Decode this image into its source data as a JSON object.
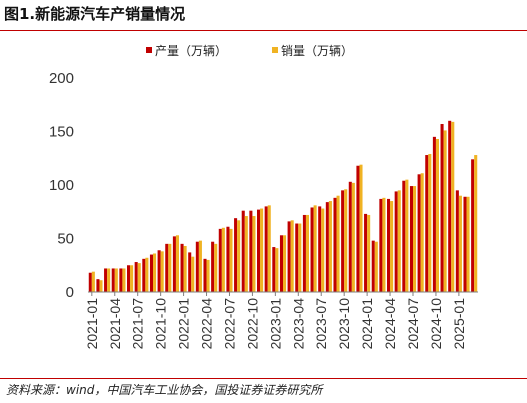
{
  "title": "图1.新能源汽车产销量情况",
  "source": "资料来源：wind，中国汽车工业协会，国投证券证券研究所",
  "colors": {
    "production": "#c00000",
    "sales": "#f0b323",
    "accent": "#c00000"
  },
  "chart_data": {
    "type": "bar",
    "title": "图1.新能源汽车产销量情况",
    "xlabel": "",
    "ylabel": "",
    "ylim": [
      0,
      200
    ],
    "yticks": [
      "0",
      "50",
      "100",
      "150",
      "200"
    ],
    "legend_position": "top",
    "grid": false,
    "xtick_labels": [
      "2021-01",
      "2021-04",
      "2021-07",
      "2021-10",
      "2022-01",
      "2022-04",
      "2022-07",
      "2022-10",
      "2023-01",
      "2023-04",
      "2023-07",
      "2023-10",
      "2024-01",
      "2024-04",
      "2024-07",
      "2024-10",
      "2025-01"
    ],
    "categories": [
      "2021-01",
      "2021-02",
      "2021-03",
      "2021-04",
      "2021-05",
      "2021-06",
      "2021-07",
      "2021-08",
      "2021-09",
      "2021-10",
      "2021-11",
      "2021-12",
      "2022-01",
      "2022-02",
      "2022-03",
      "2022-04",
      "2022-05",
      "2022-06",
      "2022-07",
      "2022-08",
      "2022-09",
      "2022-10",
      "2022-11",
      "2022-12",
      "2023-01",
      "2023-02",
      "2023-03",
      "2023-04",
      "2023-05",
      "2023-06",
      "2023-07",
      "2023-08",
      "2023-09",
      "2023-10",
      "2023-11",
      "2023-12",
      "2024-01",
      "2024-02",
      "2024-03",
      "2024-04",
      "2024-05",
      "2024-06",
      "2024-07",
      "2024-08",
      "2024-09",
      "2024-10",
      "2024-11",
      "2024-12",
      "2025-01",
      "2025-02",
      "2025-03"
    ],
    "series": [
      {
        "name": "产量（万辆）",
        "values": [
          18,
          12,
          22,
          22,
          22,
          25,
          28,
          31,
          35,
          39,
          45,
          52,
          45,
          37,
          47,
          31,
          47,
          59,
          61,
          69,
          76,
          76,
          77,
          80,
          42,
          53,
          66,
          64,
          72,
          79,
          80,
          84,
          88,
          95,
          103,
          118,
          73,
          48,
          87,
          87,
          94,
          104,
          99,
          110,
          128,
          145,
          157,
          160,
          95,
          89,
          124
        ]
      },
      {
        "name": "销量（万辆）",
        "values": [
          19,
          11,
          22,
          22,
          22,
          25,
          27,
          32,
          36,
          38,
          45,
          53,
          43,
          33,
          48,
          30,
          45,
          60,
          59,
          67,
          71,
          71,
          78,
          81,
          41,
          53,
          67,
          64,
          72,
          81,
          78,
          85,
          90,
          96,
          102,
          119,
          72,
          47,
          88,
          85,
          95,
          105,
          99,
          111,
          129,
          143,
          151,
          159,
          90,
          89,
          128
        ]
      }
    ]
  }
}
